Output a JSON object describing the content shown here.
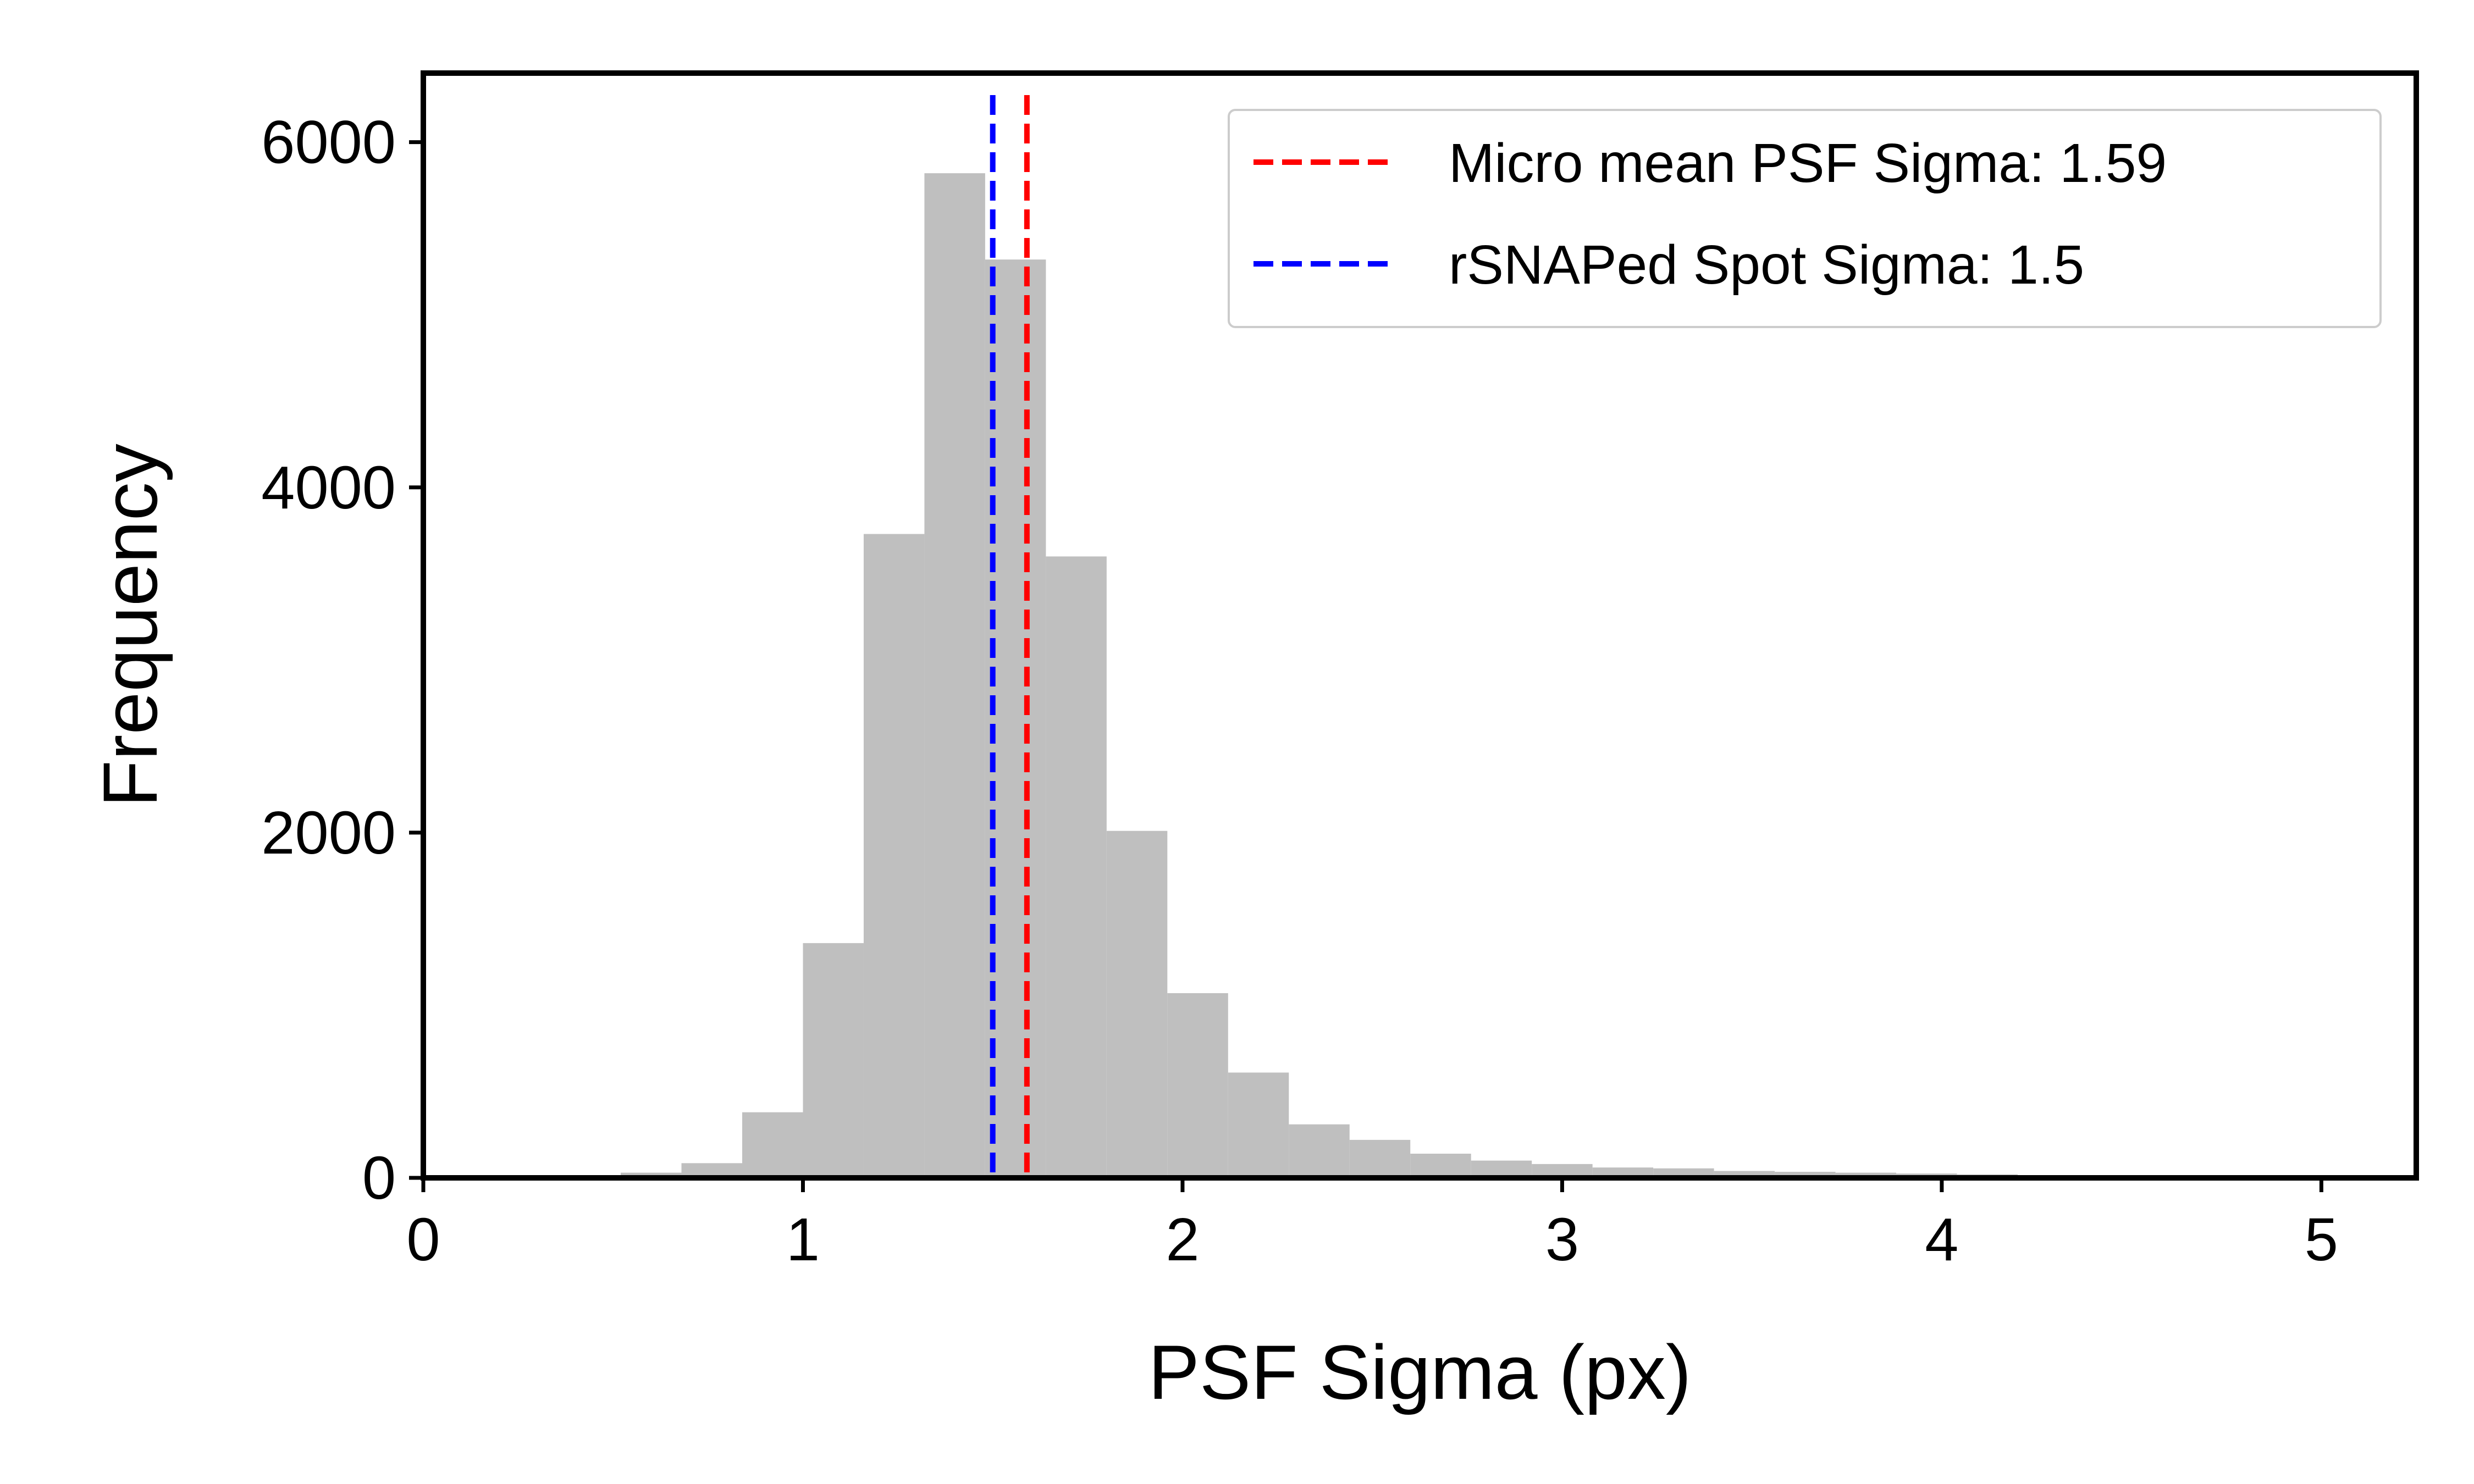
{
  "chart_data": {
    "type": "histogram",
    "xlabel": "PSF Sigma (px)",
    "ylabel": "Frequency",
    "xlim": [
      0,
      5.25
    ],
    "ylim": [
      0,
      6400
    ],
    "grid": false,
    "legend_position": "top-right",
    "x_ticks": [
      0,
      1,
      2,
      3,
      4,
      5
    ],
    "y_ticks": [
      0,
      2000,
      4000,
      6000
    ],
    "bar_color": "#bfbfbf",
    "bins": [
      {
        "start": 0.2,
        "end": 0.36,
        "value": 5
      },
      {
        "start": 0.36,
        "end": 0.52,
        "value": 12
      },
      {
        "start": 0.52,
        "end": 0.68,
        "value": 30
      },
      {
        "start": 0.68,
        "end": 0.84,
        "value": 85
      },
      {
        "start": 0.84,
        "end": 1.0,
        "value": 380
      },
      {
        "start": 1.0,
        "end": 1.16,
        "value": 1360
      },
      {
        "start": 1.16,
        "end": 1.32,
        "value": 3730
      },
      {
        "start": 1.32,
        "end": 1.48,
        "value": 5820
      },
      {
        "start": 1.48,
        "end": 1.64,
        "value": 5320
      },
      {
        "start": 1.64,
        "end": 1.8,
        "value": 3600
      },
      {
        "start": 1.8,
        "end": 1.96,
        "value": 2010
      },
      {
        "start": 1.96,
        "end": 2.12,
        "value": 1070
      },
      {
        "start": 2.12,
        "end": 2.28,
        "value": 610
      },
      {
        "start": 2.28,
        "end": 2.44,
        "value": 310
      },
      {
        "start": 2.44,
        "end": 2.6,
        "value": 220
      },
      {
        "start": 2.6,
        "end": 2.76,
        "value": 140
      },
      {
        "start": 2.76,
        "end": 2.92,
        "value": 100
      },
      {
        "start": 2.92,
        "end": 3.08,
        "value": 80
      },
      {
        "start": 3.08,
        "end": 3.24,
        "value": 60
      },
      {
        "start": 3.24,
        "end": 3.4,
        "value": 55
      },
      {
        "start": 3.4,
        "end": 3.56,
        "value": 40
      },
      {
        "start": 3.56,
        "end": 3.72,
        "value": 35
      },
      {
        "start": 3.72,
        "end": 3.88,
        "value": 30
      },
      {
        "start": 3.88,
        "end": 4.04,
        "value": 25
      },
      {
        "start": 4.04,
        "end": 4.2,
        "value": 20
      },
      {
        "start": 4.2,
        "end": 4.36,
        "value": 15
      },
      {
        "start": 4.36,
        "end": 4.52,
        "value": 12
      },
      {
        "start": 4.52,
        "end": 4.68,
        "value": 10
      },
      {
        "start": 4.68,
        "end": 4.84,
        "value": 8
      },
      {
        "start": 4.84,
        "end": 5.0,
        "value": 5
      }
    ],
    "reference_lines": [
      {
        "label": "Micro mean PSF Sigma: 1.59",
        "x": 1.59,
        "color": "#ff0000",
        "style": "dashed"
      },
      {
        "label": "rSNAPed Spot Sigma: 1.5",
        "x": 1.5,
        "color": "#0000ff",
        "style": "dashed"
      }
    ]
  }
}
